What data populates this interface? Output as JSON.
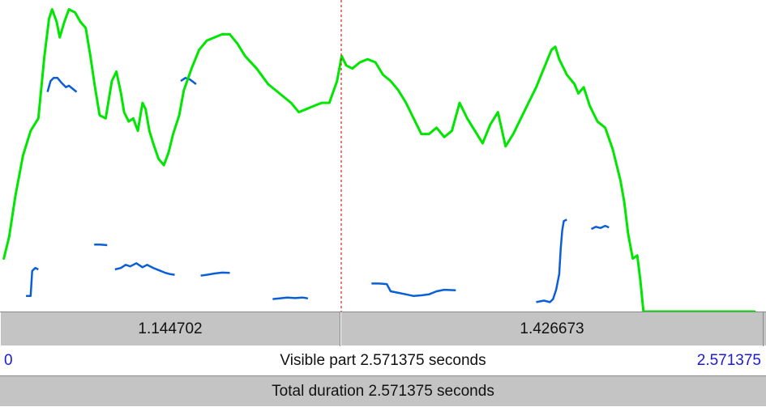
{
  "selection": {
    "left_duration": "1.144702",
    "right_duration": "1.426673"
  },
  "visible": {
    "start": "0",
    "label": "Visible part 2.571375 seconds",
    "end": "2.571375"
  },
  "total": {
    "label": "Total duration 2.571375 seconds"
  },
  "colors": {
    "intensity": "#00e600",
    "pitch": "#0a5fd6",
    "cursor": "#d62020",
    "bar_bg": "#c4c4c4",
    "time_label": "#1a1ad6"
  },
  "curves": {
    "intensity": [
      [
        0.005,
        0.83
      ],
      [
        0.012,
        0.76
      ],
      [
        0.02,
        0.63
      ],
      [
        0.03,
        0.5
      ],
      [
        0.04,
        0.42
      ],
      [
        0.05,
        0.38
      ],
      [
        0.058,
        0.18
      ],
      [
        0.064,
        0.06
      ],
      [
        0.068,
        0.03
      ],
      [
        0.074,
        0.07
      ],
      [
        0.078,
        0.12
      ],
      [
        0.084,
        0.07
      ],
      [
        0.09,
        0.03
      ],
      [
        0.098,
        0.04
      ],
      [
        0.105,
        0.07
      ],
      [
        0.112,
        0.09
      ],
      [
        0.118,
        0.18
      ],
      [
        0.124,
        0.28
      ],
      [
        0.13,
        0.37
      ],
      [
        0.138,
        0.38
      ],
      [
        0.146,
        0.26
      ],
      [
        0.152,
        0.23
      ],
      [
        0.158,
        0.3
      ],
      [
        0.162,
        0.36
      ],
      [
        0.168,
        0.39
      ],
      [
        0.174,
        0.38
      ],
      [
        0.18,
        0.42
      ],
      [
        0.186,
        0.33
      ],
      [
        0.19,
        0.35
      ],
      [
        0.195,
        0.42
      ],
      [
        0.2,
        0.46
      ],
      [
        0.207,
        0.51
      ],
      [
        0.214,
        0.53
      ],
      [
        0.22,
        0.49
      ],
      [
        0.226,
        0.43
      ],
      [
        0.234,
        0.37
      ],
      [
        0.24,
        0.29
      ],
      [
        0.25,
        0.22
      ],
      [
        0.26,
        0.16
      ],
      [
        0.27,
        0.13
      ],
      [
        0.28,
        0.12
      ],
      [
        0.29,
        0.11
      ],
      [
        0.3,
        0.11
      ],
      [
        0.31,
        0.14
      ],
      [
        0.32,
        0.18
      ],
      [
        0.335,
        0.22
      ],
      [
        0.35,
        0.27
      ],
      [
        0.365,
        0.3
      ],
      [
        0.38,
        0.33
      ],
      [
        0.39,
        0.36
      ],
      [
        0.4,
        0.35
      ],
      [
        0.41,
        0.34
      ],
      [
        0.42,
        0.33
      ],
      [
        0.43,
        0.33
      ],
      [
        0.44,
        0.26
      ],
      [
        0.446,
        0.18
      ],
      [
        0.452,
        0.21
      ],
      [
        0.46,
        0.22
      ],
      [
        0.47,
        0.2
      ],
      [
        0.48,
        0.19
      ],
      [
        0.49,
        0.2
      ],
      [
        0.5,
        0.24
      ],
      [
        0.51,
        0.26
      ],
      [
        0.52,
        0.29
      ],
      [
        0.53,
        0.33
      ],
      [
        0.54,
        0.38
      ],
      [
        0.55,
        0.43
      ],
      [
        0.56,
        0.43
      ],
      [
        0.57,
        0.41
      ],
      [
        0.58,
        0.44
      ],
      [
        0.59,
        0.42
      ],
      [
        0.6,
        0.33
      ],
      [
        0.61,
        0.38
      ],
      [
        0.62,
        0.42
      ],
      [
        0.63,
        0.46
      ],
      [
        0.64,
        0.4
      ],
      [
        0.65,
        0.36
      ],
      [
        0.66,
        0.47
      ],
      [
        0.67,
        0.43
      ],
      [
        0.68,
        0.38
      ],
      [
        0.69,
        0.33
      ],
      [
        0.7,
        0.28
      ],
      [
        0.71,
        0.22
      ],
      [
        0.72,
        0.16
      ],
      [
        0.725,
        0.15
      ],
      [
        0.73,
        0.19
      ],
      [
        0.74,
        0.24
      ],
      [
        0.75,
        0.27
      ],
      [
        0.755,
        0.3
      ],
      [
        0.762,
        0.28
      ],
      [
        0.77,
        0.34
      ],
      [
        0.78,
        0.39
      ],
      [
        0.79,
        0.41
      ],
      [
        0.8,
        0.48
      ],
      [
        0.81,
        0.58
      ],
      [
        0.815,
        0.65
      ],
      [
        0.82,
        0.75
      ],
      [
        0.826,
        0.83
      ],
      [
        0.832,
        0.82
      ],
      [
        0.836,
        0.9
      ],
      [
        0.84,
        1.0
      ],
      [
        0.985,
        1.0
      ]
    ],
    "pitch": [
      [
        [
          0.034,
          0.95
        ],
        [
          0.04,
          0.95
        ],
        [
          0.042,
          0.87
        ],
        [
          0.046,
          0.86
        ],
        [
          0.05,
          0.865
        ]
      ],
      [
        [
          0.062,
          0.295
        ],
        [
          0.066,
          0.26
        ],
        [
          0.07,
          0.25
        ],
        [
          0.075,
          0.25
        ],
        [
          0.08,
          0.265
        ],
        [
          0.086,
          0.28
        ],
        [
          0.09,
          0.275
        ],
        [
          0.1,
          0.295
        ]
      ],
      [
        [
          0.123,
          0.785
        ],
        [
          0.13,
          0.785
        ],
        [
          0.14,
          0.787
        ]
      ],
      [
        [
          0.15,
          0.865
        ],
        [
          0.158,
          0.86
        ],
        [
          0.164,
          0.85
        ],
        [
          0.17,
          0.855
        ],
        [
          0.178,
          0.845
        ],
        [
          0.186,
          0.858
        ],
        [
          0.192,
          0.85
        ],
        [
          0.2,
          0.86
        ],
        [
          0.208,
          0.868
        ],
        [
          0.215,
          0.875
        ],
        [
          0.222,
          0.88
        ],
        [
          0.228,
          0.882
        ]
      ],
      [
        [
          0.236,
          0.26
        ],
        [
          0.242,
          0.25
        ],
        [
          0.248,
          0.255
        ],
        [
          0.256,
          0.27
        ]
      ],
      [
        [
          0.262,
          0.885
        ],
        [
          0.27,
          0.882
        ],
        [
          0.28,
          0.878
        ],
        [
          0.29,
          0.875
        ],
        [
          0.3,
          0.876
        ]
      ],
      [
        [
          0.356,
          0.96
        ],
        [
          0.365,
          0.958
        ],
        [
          0.375,
          0.955
        ],
        [
          0.385,
          0.957
        ],
        [
          0.395,
          0.955
        ],
        [
          0.402,
          0.958
        ]
      ],
      [
        [
          0.485,
          0.91
        ],
        [
          0.495,
          0.91
        ],
        [
          0.505,
          0.912
        ],
        [
          0.51,
          0.935
        ],
        [
          0.52,
          0.94
        ],
        [
          0.53,
          0.945
        ],
        [
          0.54,
          0.95
        ],
        [
          0.55,
          0.948
        ],
        [
          0.56,
          0.945
        ],
        [
          0.57,
          0.935
        ],
        [
          0.58,
          0.93
        ],
        [
          0.595,
          0.932
        ]
      ],
      [
        [
          0.7,
          0.97
        ],
        [
          0.71,
          0.965
        ],
        [
          0.718,
          0.97
        ],
        [
          0.722,
          0.96
        ],
        [
          0.726,
          0.93
        ],
        [
          0.73,
          0.88
        ],
        [
          0.732,
          0.8
        ],
        [
          0.734,
          0.74
        ],
        [
          0.736,
          0.71
        ],
        [
          0.74,
          0.705
        ]
      ],
      [
        [
          0.772,
          0.735
        ],
        [
          0.778,
          0.728
        ],
        [
          0.784,
          0.732
        ],
        [
          0.79,
          0.725
        ],
        [
          0.795,
          0.73
        ]
      ]
    ]
  },
  "cursor_time": 1.144702,
  "visible_duration": 2.571375
}
